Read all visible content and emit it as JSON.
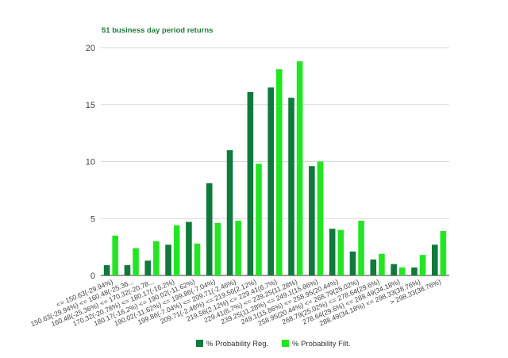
{
  "chart_data": {
    "type": "bar",
    "title": "51 business day period returns",
    "xlabel": "",
    "ylabel": "",
    "ylim": [
      0,
      20
    ],
    "yticks": [
      0,
      5,
      10,
      15,
      20
    ],
    "grid": true,
    "legend_position": "bottom",
    "categories": [
      "<= 150.63(-29.94%)",
      "150.63(-29.94%) <= 160.48(-25.36...",
      "160.48(-25.36%) <= 170.32(-20.78...",
      "170.32(-20.78%) <= 180.17(-16.2%)",
      "180.17(-16.2%) <= 190.02(-11.62%)",
      "190.02(-11.62%) <= 199.86(-7.04%)",
      "199.86(-7.04%) <= 209.71(-2.46%)",
      "209.71(-2.46%) <= 219.56(2.12%)",
      "219.56(2.12%) <= 229.41(6.7%)",
      "229.41(6.7%) <= 239.25(11.28%)",
      "239.25(11.28%) <= 249.1(15.86%)",
      "249.1(15.86%) <= 258.95(20.44%)",
      "258.95(20.44%) <= 268.79(25.02%)",
      "268.79(25.02%) <= 278.64(29.6%)",
      "278.64(29.6%) <= 288.49(34.18%)",
      "288.49(34.18%) <= 298.33(38.76%)",
      "> 298.33(38.76%)"
    ],
    "series": [
      {
        "name": "% Probability Reg.",
        "color": "#0f7a3b",
        "values": [
          0.9,
          0.9,
          1.3,
          2.7,
          4.7,
          8.1,
          11.0,
          16.1,
          16.5,
          15.6,
          9.6,
          4.1,
          2.1,
          1.4,
          1.0,
          0.7,
          2.7
        ]
      },
      {
        "name": "% Probability Filt.",
        "color": "#22e622",
        "values": [
          3.5,
          2.4,
          3.0,
          4.4,
          2.8,
          4.6,
          4.8,
          9.8,
          18.1,
          18.8,
          10.0,
          4.0,
          4.8,
          1.9,
          0.7,
          1.8,
          3.9
        ]
      }
    ]
  }
}
